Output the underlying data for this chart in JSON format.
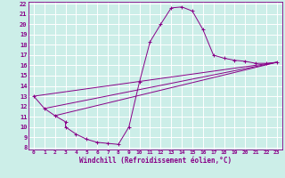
{
  "xlabel": "Windchill (Refroidissement éolien,°C)",
  "bg_color": "#cceee8",
  "grid_color": "#ffffff",
  "line_color": "#880088",
  "xlim": [
    -0.5,
    23.5
  ],
  "ylim": [
    7.8,
    22.2
  ],
  "xticks": [
    0,
    1,
    2,
    3,
    4,
    5,
    6,
    7,
    8,
    9,
    10,
    11,
    12,
    13,
    14,
    15,
    16,
    17,
    18,
    19,
    20,
    21,
    22,
    23
  ],
  "yticks": [
    8,
    9,
    10,
    11,
    12,
    13,
    14,
    15,
    16,
    17,
    18,
    19,
    20,
    21,
    22
  ],
  "series": [
    [
      0,
      13.0
    ],
    [
      1,
      11.8
    ],
    [
      2,
      11.1
    ],
    [
      3,
      10.5
    ],
    [
      3,
      10.0
    ],
    [
      4,
      9.3
    ],
    [
      5,
      8.8
    ],
    [
      6,
      8.5
    ],
    [
      7,
      8.4
    ],
    [
      8,
      8.3
    ],
    [
      9,
      10.0
    ],
    [
      10,
      14.4
    ],
    [
      11,
      18.3
    ],
    [
      12,
      20.0
    ],
    [
      13,
      21.6
    ],
    [
      14,
      21.7
    ],
    [
      15,
      21.3
    ],
    [
      16,
      19.5
    ],
    [
      17,
      17.0
    ],
    [
      18,
      16.7
    ],
    [
      19,
      16.5
    ],
    [
      20,
      16.4
    ],
    [
      21,
      16.2
    ],
    [
      22,
      16.2
    ],
    [
      23,
      16.3
    ]
  ],
  "line2": [
    [
      0,
      13.0
    ],
    [
      23,
      16.3
    ]
  ],
  "line3": [
    [
      1,
      11.8
    ],
    [
      23,
      16.3
    ]
  ],
  "line4": [
    [
      2,
      11.1
    ],
    [
      23,
      16.3
    ]
  ]
}
